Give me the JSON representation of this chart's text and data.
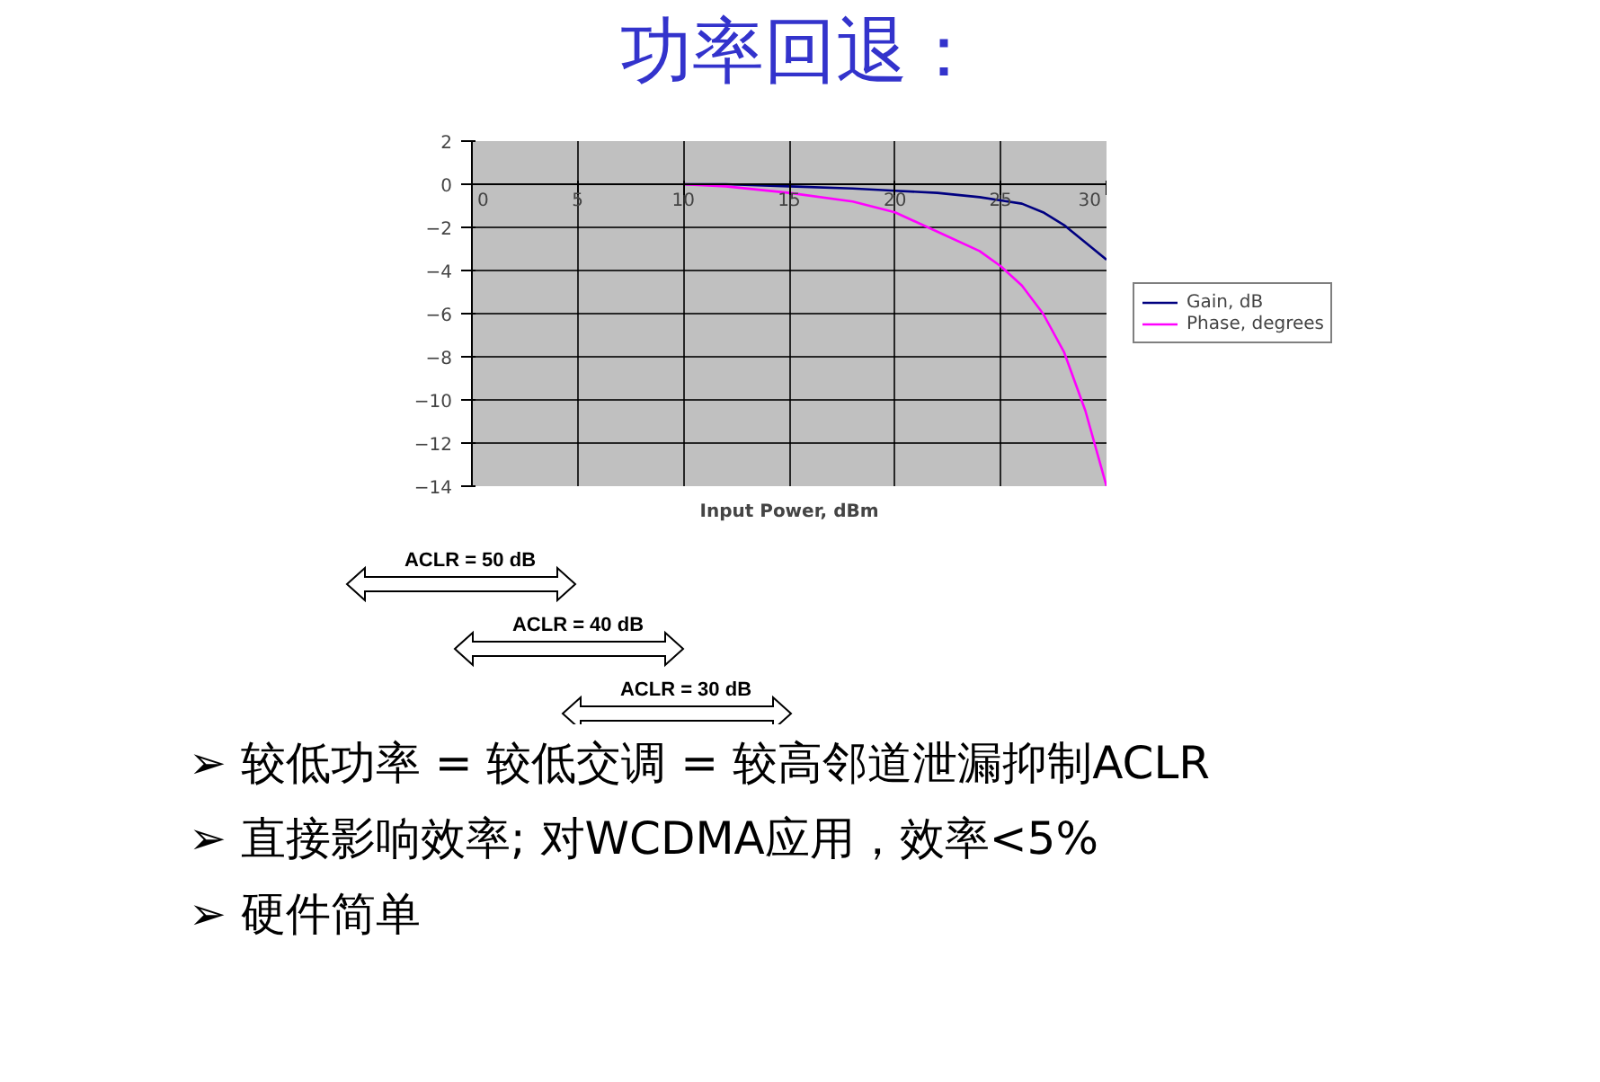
{
  "chart_data": {
    "type": "line",
    "title": "功率回退：",
    "xlabel": "Input Power, dBm",
    "x": [
      10,
      12,
      15,
      18,
      20,
      22,
      24,
      25,
      26,
      27,
      28,
      29,
      30
    ],
    "series": [
      {
        "name": "Gain, dB",
        "color": "#000080",
        "values": [
          0,
          0,
          -0.1,
          -0.2,
          -0.3,
          -0.4,
          -0.6,
          -0.75,
          -0.9,
          -1.3,
          -1.9,
          -2.7,
          -3.5
        ]
      },
      {
        "name": "Phase, degrees",
        "color": "#ff00ff",
        "values": [
          0,
          -0.1,
          -0.4,
          -0.8,
          -1.3,
          -2.2,
          -3.1,
          -3.8,
          -4.7,
          -6,
          -7.8,
          -10.5,
          -14
        ]
      }
    ],
    "xlim": [
      0,
      30
    ],
    "xticks": [
      0,
      5,
      10,
      15,
      20,
      25,
      30
    ],
    "ylim": [
      -14,
      2
    ],
    "yticks": [
      -14,
      -12,
      -10,
      -8,
      -6,
      -4,
      -2,
      0,
      2
    ],
    "grid": true,
    "legend": "right",
    "marker": "none",
    "line_style": "solid",
    "annotations": [
      "ACLR = 50 dB",
      "ACLR = 40 dB",
      "ACLR = 30 dB",
      "➢ 较低功率 = 较低交调 = 较高邻道泄漏抑制ACLR",
      "➢ 直接影响效率; 对WCDMA应用，效率<5%",
      "➢ 硬件简单"
    ]
  }
}
